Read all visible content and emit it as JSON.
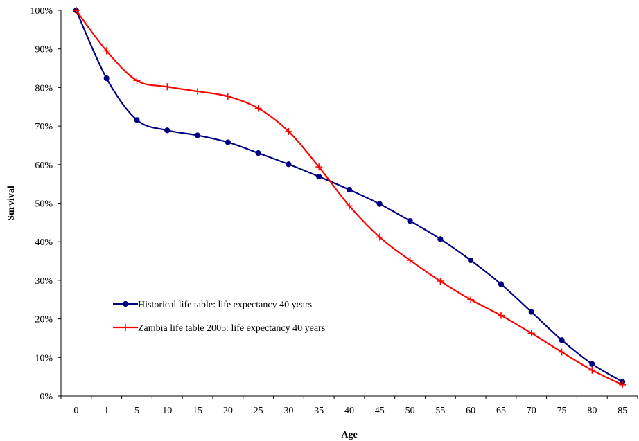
{
  "chart_data": {
    "type": "line",
    "title": "",
    "xlabel": "Age",
    "ylabel": "Survival",
    "categories": [
      "0",
      "1",
      "5",
      "10",
      "15",
      "20",
      "25",
      "30",
      "35",
      "40",
      "45",
      "50",
      "55",
      "60",
      "65",
      "70",
      "75",
      "80",
      "85"
    ],
    "y_tick_labels": [
      "0%",
      "10%",
      "20%",
      "30%",
      "40%",
      "50%",
      "60%",
      "70%",
      "80%",
      "90%",
      "100%"
    ],
    "ylim": [
      0,
      100
    ],
    "y_unit": "%",
    "grid": false,
    "legend_position": "bottom-left",
    "series": [
      {
        "name": "Historical life table: life expectancy 40 years",
        "color": "#000080",
        "marker": "circle",
        "values": [
          100,
          82.4,
          71.6,
          68.9,
          67.6,
          65.8,
          63.0,
          60.1,
          56.9,
          53.5,
          49.8,
          45.4,
          40.7,
          35.2,
          29.0,
          21.8,
          14.5,
          8.3,
          3.7
        ]
      },
      {
        "name": "Zambia life table 2005: life expectancy 40 years",
        "color": "#ff0000",
        "marker": "plus",
        "values": [
          100,
          89.5,
          81.8,
          80.2,
          79.0,
          77.7,
          74.6,
          68.6,
          59.4,
          49.3,
          41.2,
          35.2,
          29.8,
          25.0,
          20.9,
          16.3,
          11.4,
          6.7,
          2.9
        ]
      }
    ]
  }
}
